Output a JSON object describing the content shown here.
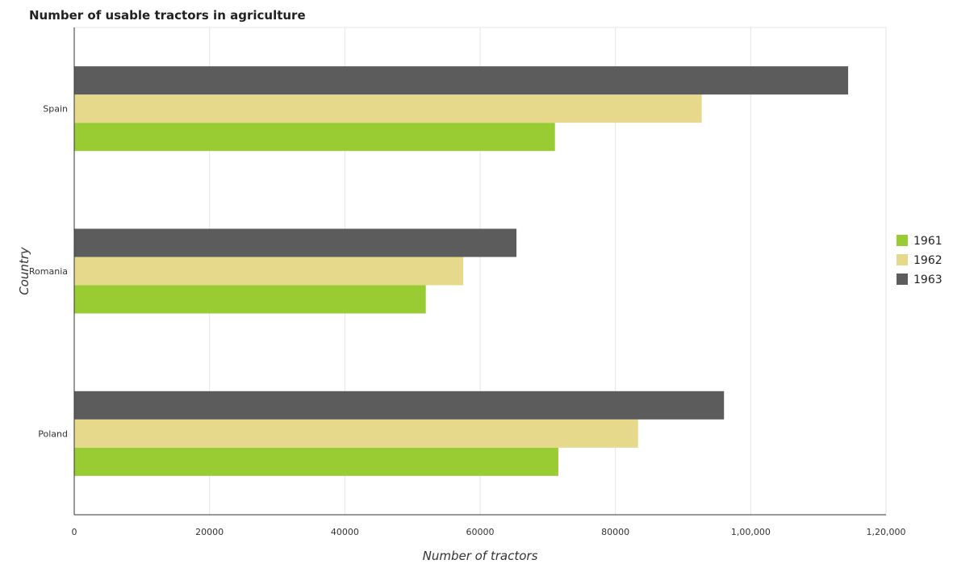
{
  "chart_data": {
    "type": "bar",
    "orientation": "horizontal",
    "title": "Number of usable tractors in agriculture",
    "xlabel": "Number of tractors",
    "ylabel": "Country",
    "categories": [
      "Poland",
      "Romania",
      "Spain"
    ],
    "series": [
      {
        "name": "1961",
        "color": "#99cc33",
        "values": [
          71560,
          51970,
          71060
        ]
      },
      {
        "name": "1962",
        "color": "#e6d98c",
        "values": [
          83350,
          57500,
          92760
        ]
      },
      {
        "name": "1963",
        "color": "#5c5c5c",
        "values": [
          96050,
          65370,
          114400
        ]
      }
    ],
    "xlim": [
      0,
      120000
    ],
    "xticks": [
      0,
      20000,
      40000,
      60000,
      80000,
      100000,
      120000
    ],
    "xtick_labels": [
      "0",
      "20000",
      "40000",
      "60000",
      "80000",
      "1,00,000",
      "1,20,000"
    ],
    "grid": true,
    "legend_position": "right"
  }
}
